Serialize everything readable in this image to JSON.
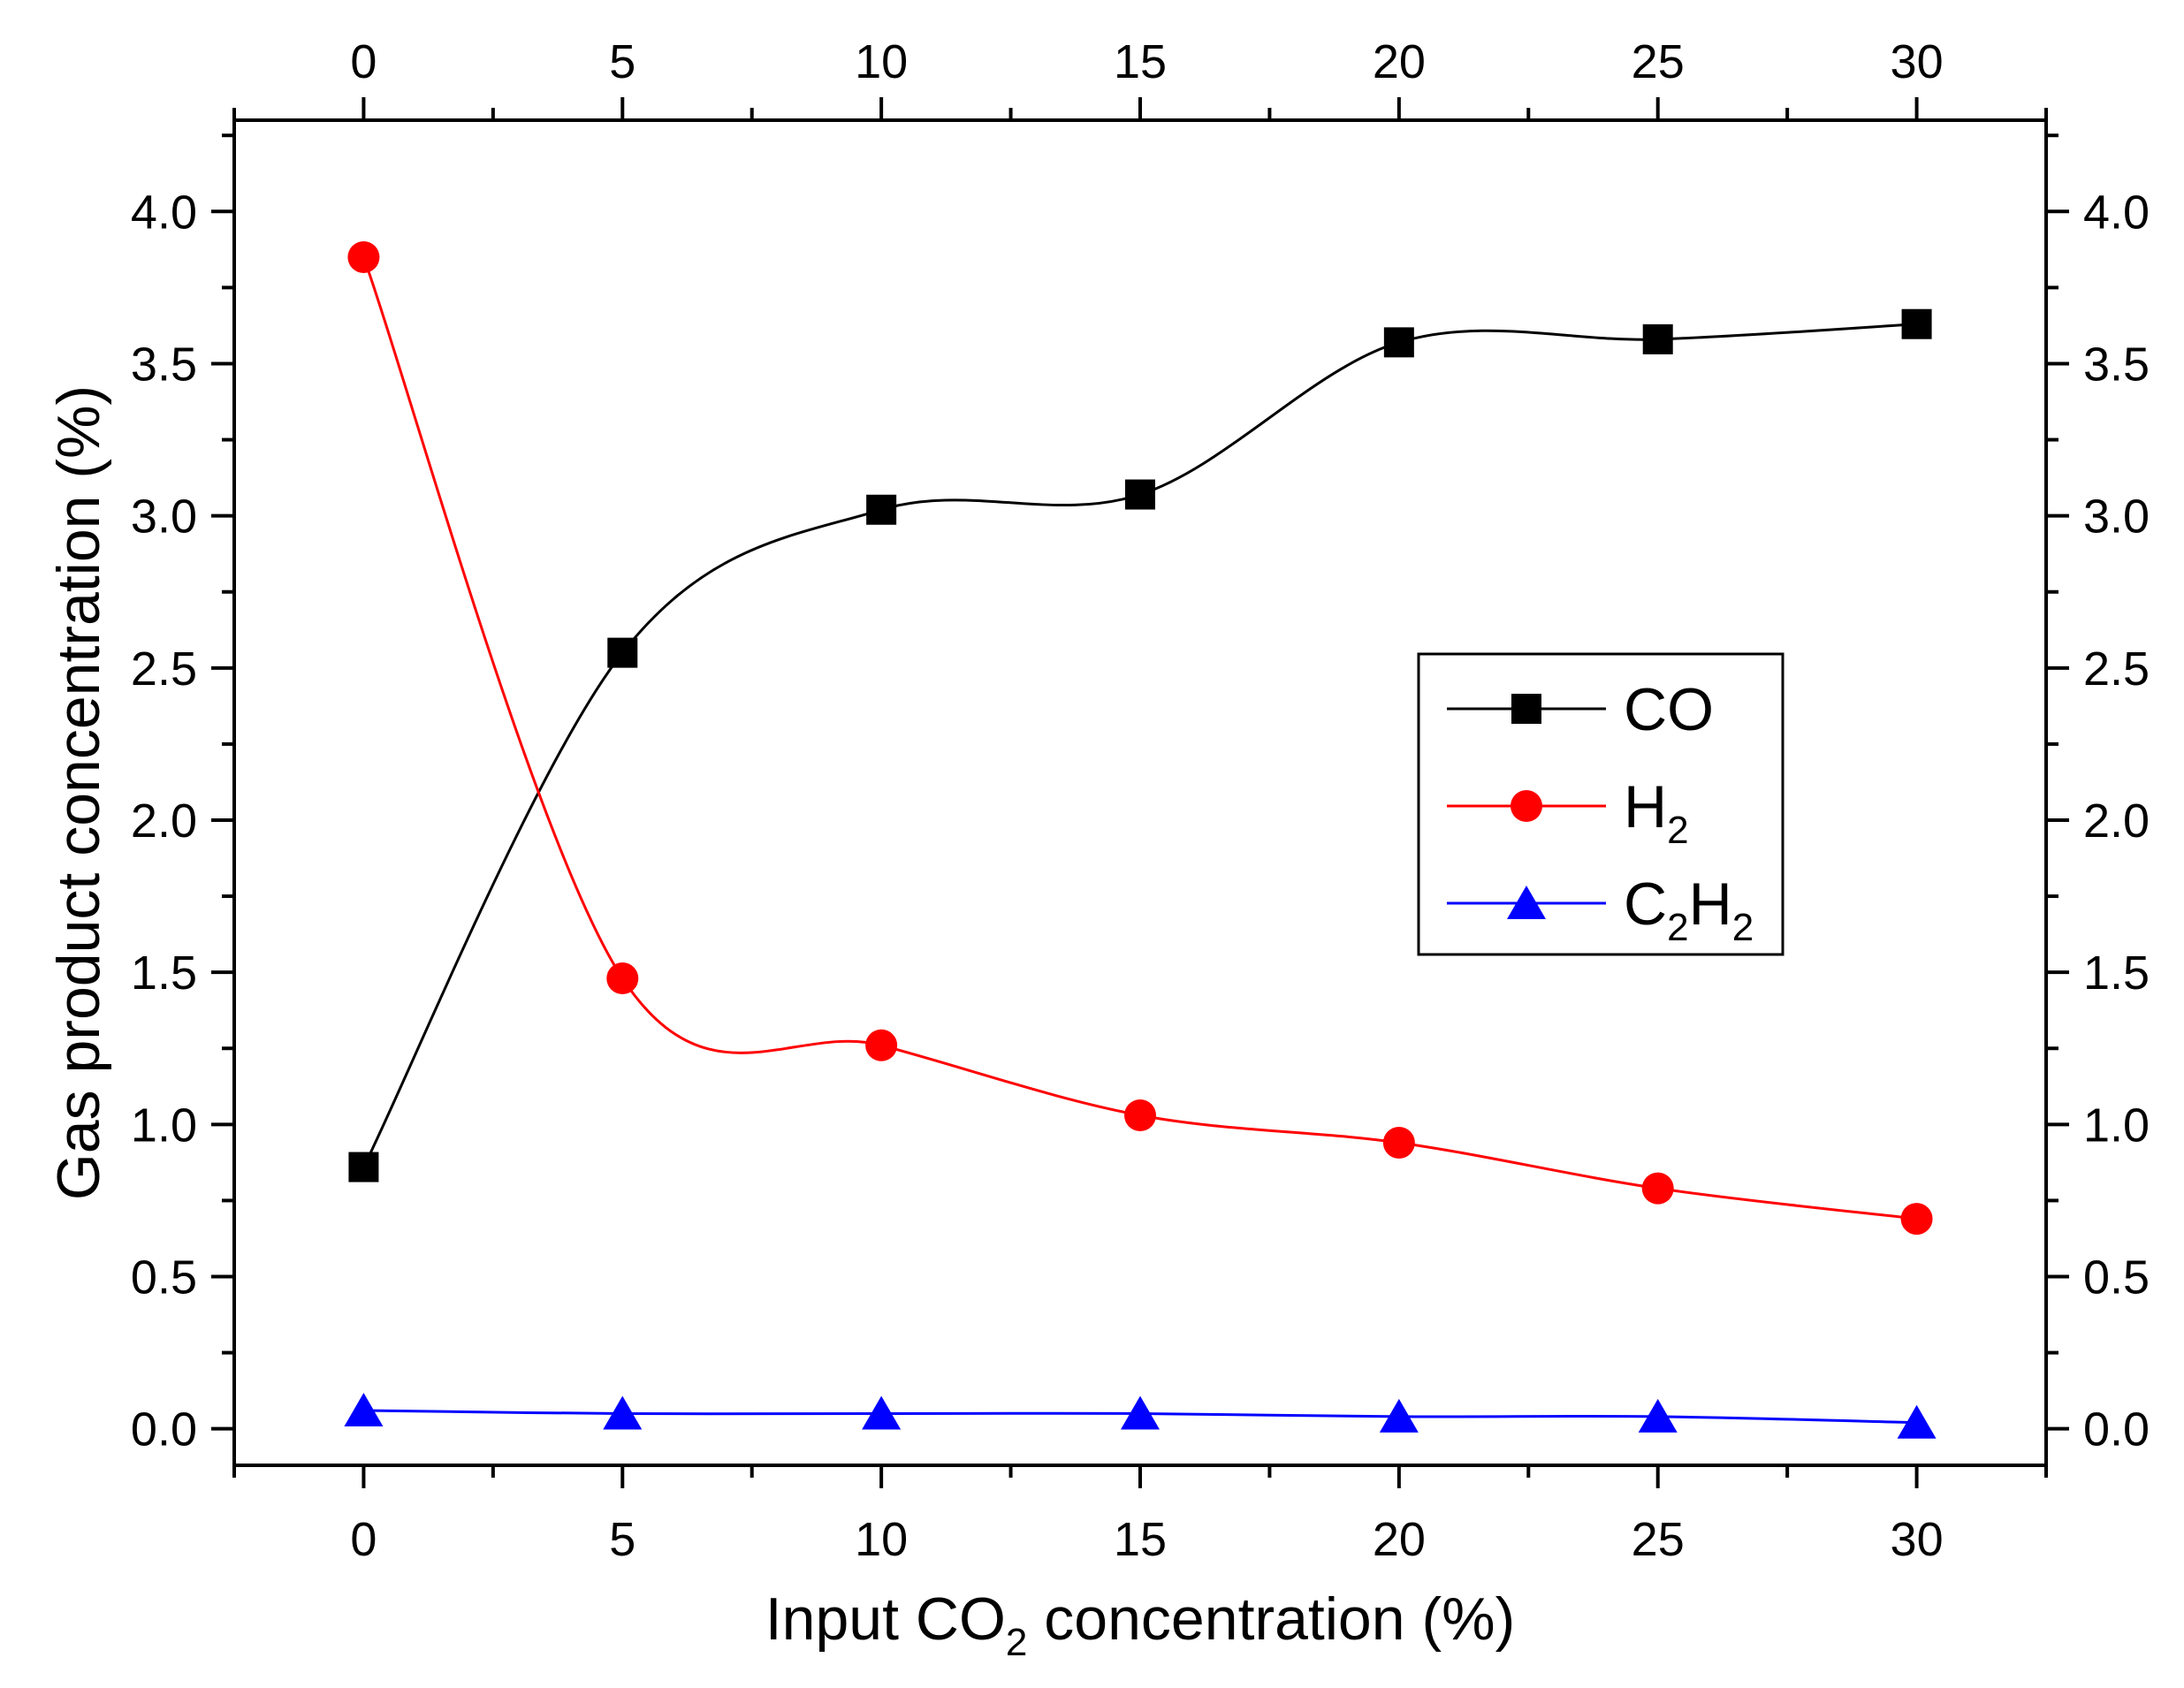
{
  "chart_data": {
    "type": "line",
    "title": "",
    "xlabel": {
      "pre": "Input CO",
      "sub": "2",
      "post": " concentration (%)"
    },
    "ylabel": "Gas product concentration (%)",
    "x": [
      0,
      5,
      10,
      15,
      20,
      25,
      30
    ],
    "xlim": [
      -2.5,
      32.5
    ],
    "ylim": [
      -0.12,
      4.3
    ],
    "x_ticks": [
      0,
      5,
      10,
      15,
      20,
      25,
      30
    ],
    "x_tick_labels": [
      "0",
      "5",
      "10",
      "15",
      "20",
      "25",
      "30"
    ],
    "y_ticks": [
      0.0,
      0.5,
      1.0,
      1.5,
      2.0,
      2.5,
      3.0,
      3.5,
      4.0
    ],
    "y_tick_labels": [
      "0.0",
      "0.5",
      "1.0",
      "1.5",
      "2.0",
      "2.5",
      "3.0",
      "3.5",
      "4.0"
    ],
    "mirror_axes": true,
    "legend_position": "center-right",
    "series": [
      {
        "name": "CO",
        "label": {
          "parts": [
            {
              "t": "CO"
            }
          ]
        },
        "marker": "square",
        "color": "#000000",
        "values": [
          0.86,
          2.55,
          3.02,
          3.07,
          3.57,
          3.58,
          3.63
        ]
      },
      {
        "name": "H2",
        "label": {
          "parts": [
            {
              "t": "H"
            },
            {
              "t": "2",
              "sub": true
            }
          ]
        },
        "marker": "circle",
        "color": "#ff0000",
        "values": [
          3.85,
          1.48,
          1.26,
          1.03,
          0.94,
          0.79,
          0.69
        ]
      },
      {
        "name": "C2H2",
        "label": {
          "parts": [
            {
              "t": "C"
            },
            {
              "t": "2",
              "sub": true
            },
            {
              "t": "H"
            },
            {
              "t": "2",
              "sub": true
            }
          ]
        },
        "marker": "triangle",
        "color": "#0000ff",
        "values": [
          0.06,
          0.05,
          0.05,
          0.05,
          0.04,
          0.04,
          0.02
        ]
      }
    ]
  }
}
